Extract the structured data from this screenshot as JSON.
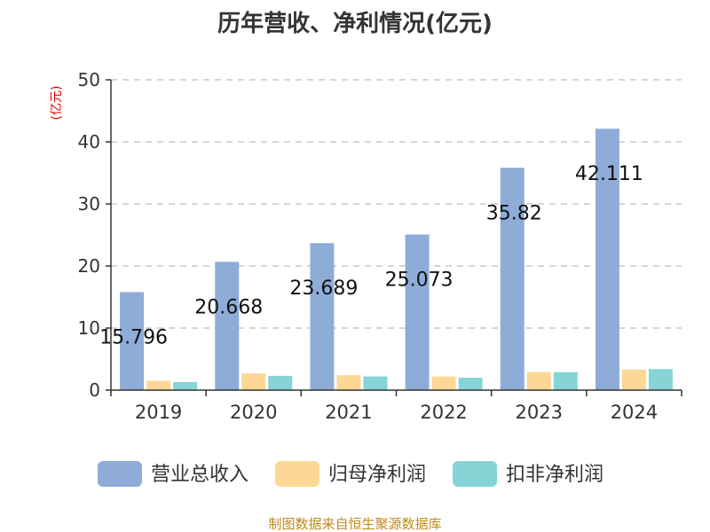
{
  "chart_data": {
    "type": "bar",
    "title": "历年营收、净利情况(亿元)",
    "ylabel": "(亿元)",
    "categories": [
      "2019",
      "2020",
      "2021",
      "2022",
      "2023",
      "2024"
    ],
    "ylim": [
      0,
      50
    ],
    "yticks": [
      0,
      10,
      20,
      30,
      40,
      50
    ],
    "grid": true,
    "legend_position": "bottom",
    "series": [
      {
        "name": "营业总收入",
        "color": "#8eacd8",
        "values": [
          15.796,
          20.668,
          23.689,
          25.073,
          35.82,
          42.111
        ]
      },
      {
        "name": "归母净利润",
        "color": "#fdd895",
        "values": [
          1.5,
          2.7,
          2.4,
          2.2,
          2.9,
          3.3
        ]
      },
      {
        "name": "扣非净利润",
        "color": "#85d4d6",
        "values": [
          1.3,
          2.3,
          2.2,
          2.0,
          2.9,
          3.4
        ]
      }
    ],
    "data_labels": [
      "15.796",
      "20.668",
      "23.689",
      "25.073",
      "35.82",
      "42.111"
    ]
  },
  "source": "制图数据来自恒生聚源数据库"
}
